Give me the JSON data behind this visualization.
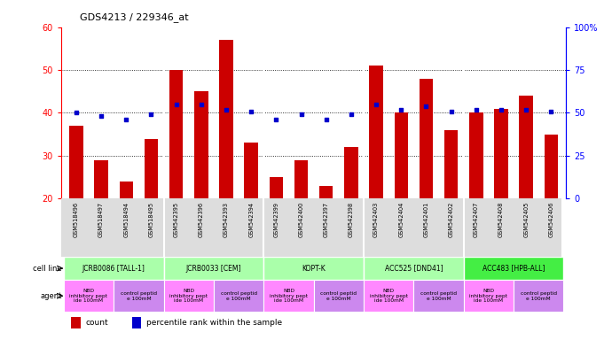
{
  "title": "GDS4213 / 229346_at",
  "gsm_labels": [
    "GSM518496",
    "GSM518497",
    "GSM518494",
    "GSM518495",
    "GSM542395",
    "GSM542396",
    "GSM542393",
    "GSM542394",
    "GSM542399",
    "GSM542400",
    "GSM542397",
    "GSM542398",
    "GSM542403",
    "GSM542404",
    "GSM542401",
    "GSM542402",
    "GSM542407",
    "GSM542408",
    "GSM542405",
    "GSM542406"
  ],
  "counts": [
    37,
    29,
    24,
    34,
    50,
    45,
    57,
    33,
    25,
    29,
    23,
    32,
    51,
    40,
    48,
    36,
    40,
    41,
    44,
    35
  ],
  "percentiles": [
    50,
    48,
    46,
    49,
    55,
    55,
    52,
    51,
    46,
    49,
    46,
    49,
    55,
    52,
    54,
    51,
    52,
    52,
    52,
    51
  ],
  "bar_color": "#cc0000",
  "dot_color": "#0000cc",
  "ylim_left": [
    20,
    60
  ],
  "ylim_right": [
    0,
    100
  ],
  "yticks_left": [
    20,
    30,
    40,
    50,
    60
  ],
  "yticks_right": [
    0,
    25,
    50,
    75,
    100
  ],
  "cell_line_groups": [
    {
      "label": "JCRB0086 [TALL-1]",
      "start": 0,
      "end": 3,
      "color": "#aaffaa"
    },
    {
      "label": "JCRB0033 [CEM]",
      "start": 4,
      "end": 7,
      "color": "#aaffaa"
    },
    {
      "label": "KOPT-K",
      "start": 8,
      "end": 11,
      "color": "#aaffaa"
    },
    {
      "label": "ACC525 [DND41]",
      "start": 12,
      "end": 15,
      "color": "#aaffaa"
    },
    {
      "label": "ACC483 [HPB-ALL]",
      "start": 16,
      "end": 19,
      "color": "#44ee44"
    }
  ],
  "agent_groups": [
    {
      "label": "NBD\ninhibitory pept\nide 100mM",
      "start": 0,
      "end": 1,
      "color": "#ff88ff"
    },
    {
      "label": "control peptid\ne 100mM",
      "start": 2,
      "end": 3,
      "color": "#cc88ee"
    },
    {
      "label": "NBD\ninhibitory pept\nide 100mM",
      "start": 4,
      "end": 5,
      "color": "#ff88ff"
    },
    {
      "label": "control peptid\ne 100mM",
      "start": 6,
      "end": 7,
      "color": "#cc88ee"
    },
    {
      "label": "NBD\ninhibitory pept\nide 100mM",
      "start": 8,
      "end": 9,
      "color": "#ff88ff"
    },
    {
      "label": "control peptid\ne 100mM",
      "start": 10,
      "end": 11,
      "color": "#cc88ee"
    },
    {
      "label": "NBD\ninhibitory pept\nide 100mM",
      "start": 12,
      "end": 13,
      "color": "#ff88ff"
    },
    {
      "label": "control peptid\ne 100mM",
      "start": 14,
      "end": 15,
      "color": "#cc88ee"
    },
    {
      "label": "NBD\ninhibitory pept\nide 100mM",
      "start": 16,
      "end": 17,
      "color": "#ff88ff"
    },
    {
      "label": "control peptid\ne 100mM",
      "start": 18,
      "end": 19,
      "color": "#cc88ee"
    }
  ],
  "row_label_cell_line": "cell line",
  "row_label_agent": "agent",
  "legend_count_label": "count",
  "legend_pct_label": "percentile rank within the sample",
  "grid_yticks": [
    30,
    40,
    50
  ],
  "bar_width": 0.55,
  "xtick_bg_color": "#dddddd",
  "group_divider_color": "#888888"
}
